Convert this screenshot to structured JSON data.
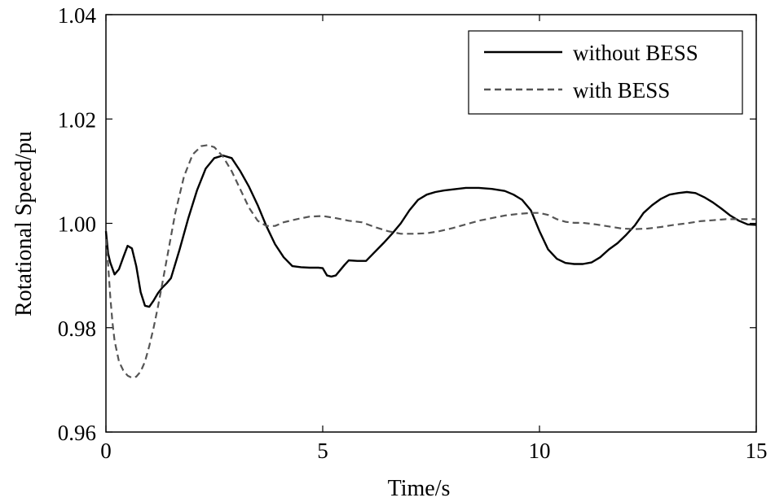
{
  "chart_data": {
    "type": "line",
    "xlabel": "Time/s",
    "ylabel": "Rotational Speed/pu",
    "xlim": [
      0,
      15
    ],
    "ylim": [
      0.96,
      1.04
    ],
    "xticks": [
      0,
      5,
      10,
      15
    ],
    "xtick_labels": [
      "0",
      "5",
      "10",
      "15"
    ],
    "yticks": [
      0.96,
      0.98,
      1.0,
      1.02,
      1.04
    ],
    "ytick_labels": [
      "0.96",
      "0.98",
      "1.00",
      "1.02",
      "1.04"
    ],
    "grid": false,
    "legend_position": "top-right",
    "series": [
      {
        "name": "without BESS",
        "style": "solid",
        "color": "#000000",
        "x": [
          0,
          0.05,
          0.1,
          0.2,
          0.3,
          0.4,
          0.5,
          0.6,
          0.7,
          0.8,
          0.9,
          1.0,
          1.1,
          1.2,
          1.3,
          1.4,
          1.5,
          1.7,
          1.9,
          2.1,
          2.3,
          2.5,
          2.7,
          2.9,
          3.1,
          3.3,
          3.5,
          3.7,
          3.9,
          4.1,
          4.3,
          4.5,
          4.7,
          4.9,
          5.0,
          5.1,
          5.2,
          5.3,
          5.4,
          5.5,
          5.6,
          5.8,
          6.0,
          6.2,
          6.4,
          6.6,
          6.8,
          7.0,
          7.2,
          7.4,
          7.6,
          7.8,
          8.0,
          8.3,
          8.6,
          8.9,
          9.2,
          9.4,
          9.6,
          9.8,
          10.0,
          10.2,
          10.4,
          10.6,
          10.8,
          11.0,
          11.2,
          11.4,
          11.6,
          11.8,
          12.0,
          12.2,
          12.4,
          12.6,
          12.8,
          13.0,
          13.2,
          13.4,
          13.6,
          13.8,
          14.0,
          14.2,
          14.4,
          14.6,
          14.8,
          15.0
        ],
        "values": [
          0.9985,
          0.9942,
          0.9925,
          0.9902,
          0.9912,
          0.9935,
          0.9957,
          0.9952,
          0.9918,
          0.9868,
          0.9842,
          0.984,
          0.9852,
          0.9866,
          0.9877,
          0.9885,
          0.9895,
          0.995,
          1.001,
          1.0063,
          1.0105,
          1.0125,
          1.013,
          1.0125,
          1.01,
          1.007,
          1.0035,
          0.9995,
          0.996,
          0.9935,
          0.9918,
          0.9916,
          0.9915,
          0.9915,
          0.9914,
          0.99,
          0.9898,
          0.99,
          0.991,
          0.992,
          0.9929,
          0.9928,
          0.9928,
          0.9945,
          0.9962,
          0.998,
          1.0,
          1.0025,
          1.0045,
          1.0055,
          1.006,
          1.0063,
          1.0065,
          1.0068,
          1.0068,
          1.0066,
          1.0062,
          1.0055,
          1.0045,
          1.0025,
          0.9985,
          0.995,
          0.9932,
          0.9924,
          0.9922,
          0.9922,
          0.9925,
          0.9935,
          0.995,
          0.9962,
          0.9978,
          0.9996,
          1.002,
          1.0035,
          1.0047,
          1.0055,
          1.0058,
          1.006,
          1.0058,
          1.005,
          1.004,
          1.0028,
          1.0015,
          1.0005,
          0.9998,
          0.9997
        ]
      },
      {
        "name": "with BESS",
        "style": "dashed",
        "color": "#555555",
        "x": [
          0,
          0.05,
          0.1,
          0.15,
          0.2,
          0.3,
          0.4,
          0.5,
          0.6,
          0.7,
          0.8,
          0.9,
          1.0,
          1.1,
          1.2,
          1.3,
          1.4,
          1.5,
          1.6,
          1.8,
          2.0,
          2.2,
          2.35,
          2.5,
          2.7,
          2.9,
          3.1,
          3.3,
          3.5,
          3.7,
          3.9,
          4.1,
          4.4,
          4.7,
          5.0,
          5.3,
          5.6,
          5.9,
          6.2,
          6.5,
          6.8,
          7.1,
          7.4,
          7.7,
          8.0,
          8.3,
          8.6,
          8.9,
          9.2,
          9.5,
          9.8,
          10.0,
          10.2,
          10.4,
          10.6,
          10.8,
          11.0,
          11.3,
          11.6,
          11.9,
          12.2,
          12.5,
          12.8,
          13.1,
          13.4,
          13.7,
          14.0,
          14.3,
          14.6,
          15.0
        ],
        "values": [
          0.997,
          0.992,
          0.986,
          0.981,
          0.9775,
          0.9735,
          0.9718,
          0.9708,
          0.9704,
          0.9706,
          0.9716,
          0.9735,
          0.9765,
          0.98,
          0.984,
          0.9885,
          0.993,
          0.9975,
          1.002,
          1.009,
          1.0132,
          1.0148,
          1.015,
          1.0146,
          1.0128,
          1.01,
          1.0065,
          1.003,
          1.0005,
          0.9995,
          0.9995,
          1.0002,
          1.0008,
          1.0013,
          1.0014,
          1.001,
          1.0005,
          1.0002,
          0.9993,
          0.9985,
          0.998,
          0.998,
          0.9981,
          0.9985,
          0.9991,
          0.9998,
          1.0005,
          1.001,
          1.0015,
          1.0018,
          1.002,
          1.002,
          1.0016,
          1.0008,
          1.0003,
          1.0001,
          1.0001,
          0.9998,
          0.9994,
          0.999,
          0.9989,
          0.999,
          0.9993,
          0.9997,
          1.0,
          1.0004,
          1.0006,
          1.0008,
          1.0008,
          1.0008
        ]
      }
    ]
  }
}
